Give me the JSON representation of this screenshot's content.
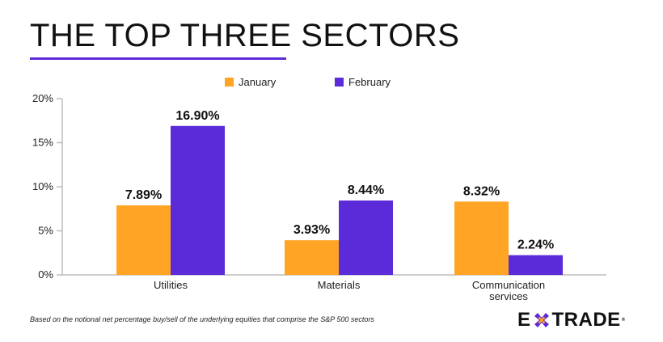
{
  "title": "THE TOP THREE SECTORS",
  "footnote": "Based on the notional net percentage buy/sell of the underlying equities that comprise the S&P 500 sectors",
  "logo": {
    "left": "E",
    "right": "TRADE",
    "mark_icon": "star-cross-icon",
    "registered": "®"
  },
  "colors": {
    "january": "#ffa424",
    "february": "#5b2bd9",
    "accent": "#5b2bd9"
  },
  "chart_data": {
    "type": "bar",
    "categories": [
      "Utilities",
      "Materials",
      "Communication services"
    ],
    "category_lines": [
      [
        "Utilities"
      ],
      [
        "Materials"
      ],
      [
        "Communication",
        "services"
      ]
    ],
    "series": [
      {
        "name": "January",
        "values": [
          7.89,
          3.93,
          8.32
        ],
        "labels": [
          "7.89%",
          "3.93%",
          "8.32%"
        ]
      },
      {
        "name": "February",
        "values": [
          16.9,
          8.44,
          2.24
        ],
        "labels": [
          "16.90%",
          "8.44%",
          "2.24%"
        ]
      }
    ],
    "yticks": [
      0,
      5,
      10,
      15,
      20
    ],
    "ytick_labels": [
      "0%",
      "5%",
      "10%",
      "15%",
      "20%"
    ],
    "ylim": [
      0,
      20
    ],
    "xlabel": "",
    "ylabel": "",
    "legend": "top-center",
    "grid": false
  }
}
